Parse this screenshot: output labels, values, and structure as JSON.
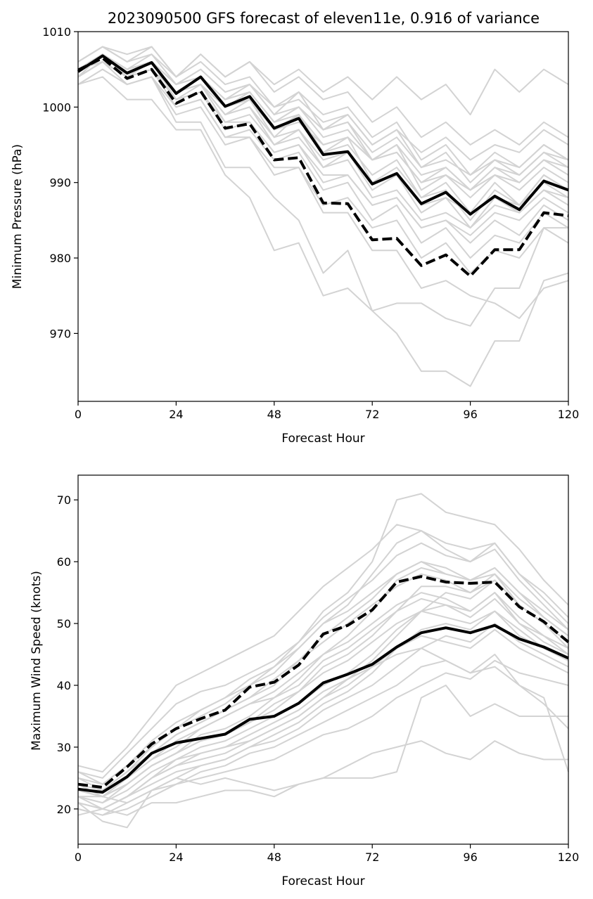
{
  "figure": {
    "title": "2023090500 GFS forecast of eleven11e, 0.916 of variance"
  },
  "colors": {
    "ensemble_member": "#d3d3d3",
    "solid_series": "#000000",
    "dashed_series": "#000000",
    "background": "#ffffff"
  },
  "chart_data": [
    {
      "type": "line",
      "title": "2023090500 GFS forecast of eleven11e, 0.916 of variance",
      "xlabel": "Forecast Hour",
      "ylabel": "Minimum Pressure (hPa)",
      "xlim": [
        0,
        120
      ],
      "ylim": [
        961,
        1010
      ],
      "xticks": [
        0,
        24,
        48,
        72,
        96,
        120
      ],
      "yticks": [
        970,
        980,
        990,
        1000,
        1010
      ],
      "grid": false,
      "x": [
        0,
        6,
        12,
        18,
        24,
        30,
        36,
        42,
        48,
        54,
        60,
        66,
        72,
        78,
        84,
        90,
        96,
        102,
        108,
        114,
        120
      ],
      "ensemble_members": [
        [
          1005,
          1007,
          1005,
          1006,
          1003,
          1005,
          1002,
          1003,
          999,
          1002,
          997,
          998,
          993,
          995,
          991,
          992,
          989,
          992,
          990,
          993,
          991
        ],
        [
          1004,
          1006,
          1004,
          1005,
          1002,
          1003,
          999,
          1001,
          996,
          999,
          994,
          996,
          990,
          992,
          988,
          990,
          986,
          990,
          987,
          991,
          989
        ],
        [
          1006,
          1008,
          1006,
          1007,
          1004,
          1006,
          1003,
          1004,
          1000,
          1002,
          999,
          1000,
          996,
          998,
          993,
          995,
          991,
          994,
          992,
          995,
          993
        ],
        [
          1005,
          1007,
          1005,
          1006,
          1003,
          1004,
          1001,
          1002,
          998,
          1000,
          996,
          997,
          993,
          995,
          989,
          991,
          988,
          991,
          989,
          992,
          990
        ],
        [
          1004,
          1007,
          1004,
          1006,
          1001,
          1003,
          998,
          999,
          995,
          997,
          992,
          994,
          989,
          991,
          986,
          988,
          984,
          988,
          986,
          989,
          987
        ],
        [
          1003,
          1005,
          1003,
          1004,
          1000,
          1001,
          996,
          997,
          993,
          994,
          989,
          990,
          985,
          987,
          982,
          984,
          980,
          983,
          982,
          986,
          984
        ],
        [
          1005,
          1006,
          1004,
          1006,
          1002,
          1004,
          1000,
          1001,
          997,
          999,
          994,
          995,
          991,
          993,
          988,
          989,
          985,
          989,
          987,
          991,
          989
        ],
        [
          1006,
          1008,
          1007,
          1008,
          1004,
          1007,
          1004,
          1006,
          1002,
          1004,
          1001,
          1002,
          998,
          1000,
          996,
          998,
          995,
          997,
          995,
          998,
          996
        ],
        [
          1004,
          1006,
          1004,
          1005,
          1001,
          1002,
          997,
          998,
          994,
          995,
          990,
          991,
          987,
          988,
          984,
          985,
          982,
          985,
          983,
          987,
          985
        ],
        [
          1003,
          1005,
          1003,
          1004,
          999,
          1000,
          995,
          996,
          991,
          992,
          987,
          988,
          984,
          985,
          980,
          982,
          978,
          981,
          980,
          984,
          982
        ],
        [
          1005,
          1007,
          1005,
          1007,
          1003,
          1005,
          1002,
          1003,
          1000,
          1001,
          998,
          999,
          995,
          997,
          992,
          994,
          990,
          993,
          991,
          994,
          992
        ],
        [
          1004,
          1006,
          1004,
          1005,
          1002,
          1003,
          1000,
          1001,
          997,
          998,
          995,
          996,
          993,
          994,
          990,
          992,
          989,
          991,
          990,
          993,
          992
        ],
        [
          1003,
          1004,
          1001,
          1001,
          997,
          997,
          991,
          988,
          981,
          982,
          975,
          976,
          973,
          974,
          974,
          972,
          971,
          976,
          976,
          984,
          984
        ],
        [
          1004,
          1006,
          1003,
          1004,
          998,
          998,
          992,
          992,
          988,
          985,
          978,
          981,
          973,
          970,
          965,
          965,
          963,
          969,
          969,
          977,
          978
        ],
        [
          1004,
          1006,
          1004,
          1005,
          1000,
          1001,
          996,
          996,
          992,
          992,
          986,
          986,
          981,
          981,
          976,
          977,
          975,
          974,
          972,
          976,
          977
        ],
        [
          1005,
          1007,
          1005,
          1006,
          1003,
          1004,
          1001,
          1002,
          998,
          1000,
          997,
          999,
          995,
          997,
          994,
          996,
          993,
          995,
          994,
          997,
          995
        ],
        [
          1006,
          1008,
          1006,
          1008,
          1004,
          1007,
          1004,
          1006,
          1003,
          1005,
          1002,
          1004,
          1001,
          1004,
          1001,
          1003,
          999,
          1005,
          1002,
          1005,
          1003
        ],
        [
          1004,
          1007,
          1005,
          1006,
          1002,
          1004,
          1000,
          1002,
          998,
          999,
          995,
          996,
          993,
          994,
          990,
          991,
          989,
          992,
          991,
          994,
          993
        ],
        [
          1005,
          1007,
          1005,
          1006,
          1002,
          1003,
          999,
          1000,
          996,
          997,
          993,
          994,
          990,
          991,
          987,
          988,
          986,
          988,
          987,
          990,
          988
        ],
        [
          1004,
          1006,
          1004,
          1005,
          1001,
          1002,
          998,
          998,
          994,
          995,
          991,
          991,
          987,
          988,
          984,
          985,
          983,
          986,
          985,
          988,
          986
        ],
        [
          1005,
          1007,
          1005,
          1006,
          1003,
          1004,
          1001,
          1003,
          999,
          1000,
          997,
          998,
          994,
          996,
          992,
          993,
          991,
          993,
          992,
          995,
          993
        ],
        [
          1004,
          1006,
          1004,
          1005,
          1002,
          1003,
          999,
          1000,
          995,
          996,
          992,
          993,
          988,
          989,
          985,
          986,
          984,
          987,
          986,
          989,
          988
        ]
      ],
      "series": [
        {
          "style": "solid",
          "values": [
            1004.7,
            1006.8,
            1004.5,
            1005.9,
            1001.8,
            1004.0,
            1000.1,
            1001.4,
            997.2,
            998.5,
            993.7,
            994.1,
            989.8,
            991.2,
            987.2,
            988.7,
            985.8,
            988.2,
            986.4,
            990.2,
            989.0
          ]
        },
        {
          "style": "dashed",
          "values": [
            1004.9,
            1006.5,
            1003.8,
            1005.0,
            1000.5,
            1002.1,
            997.2,
            997.8,
            993.0,
            993.3,
            987.3,
            987.2,
            982.4,
            982.6,
            979.0,
            980.4,
            977.6,
            981.1,
            981.1,
            986.0,
            985.6
          ]
        }
      ]
    },
    {
      "type": "line",
      "title": "",
      "xlabel": "Forecast Hour",
      "ylabel": "Maximum Wind Speed (knots)",
      "xlim": [
        0,
        120
      ],
      "ylim": [
        14.3,
        74
      ],
      "xticks": [
        0,
        24,
        48,
        72,
        96,
        120
      ],
      "yticks": [
        20,
        30,
        40,
        50,
        60,
        70
      ],
      "grid": false,
      "x": [
        0,
        6,
        12,
        18,
        24,
        30,
        36,
        42,
        48,
        54,
        60,
        66,
        72,
        78,
        84,
        90,
        96,
        102,
        108,
        114,
        120
      ],
      "ensemble_members": [
        [
          23,
          22,
          25,
          28,
          31,
          33,
          35,
          37,
          38,
          41,
          45,
          48,
          52,
          57,
          59,
          58,
          57,
          58,
          54,
          51,
          48
        ],
        [
          24,
          23,
          26,
          30,
          33,
          35,
          37,
          40,
          42,
          46,
          50,
          53,
          58,
          63,
          65,
          62,
          60,
          63,
          58,
          54,
          50
        ],
        [
          22,
          21,
          24,
          27,
          29,
          31,
          32,
          34,
          36,
          39,
          43,
          45,
          48,
          52,
          56,
          56,
          55,
          58,
          53,
          50,
          47
        ],
        [
          26,
          25,
          29,
          33,
          37,
          39,
          40,
          42,
          44,
          47,
          52,
          55,
          60,
          70,
          71,
          68,
          67,
          66,
          62,
          57,
          53
        ],
        [
          21,
          20,
          22,
          25,
          28,
          30,
          31,
          33,
          35,
          37,
          40,
          42,
          45,
          49,
          52,
          53,
          52,
          55,
          50,
          48,
          45
        ],
        [
          20,
          19,
          21,
          23,
          25,
          27,
          28,
          30,
          32,
          34,
          37,
          39,
          42,
          46,
          49,
          50,
          49,
          52,
          48,
          46,
          44
        ],
        [
          25,
          24,
          27,
          31,
          34,
          36,
          38,
          41,
          43,
          47,
          51,
          54,
          57,
          61,
          63,
          61,
          60,
          62,
          57,
          53,
          49
        ],
        [
          23,
          22,
          25,
          29,
          32,
          34,
          36,
          38,
          40,
          44,
          48,
          51,
          54,
          58,
          60,
          58,
          57,
          59,
          55,
          51,
          48
        ],
        [
          22,
          21,
          23,
          26,
          28,
          29,
          30,
          31,
          33,
          35,
          38,
          41,
          44,
          48,
          52,
          55,
          54,
          57,
          53,
          50,
          46
        ],
        [
          27,
          26,
          30,
          35,
          40,
          42,
          44,
          46,
          48,
          52,
          56,
          59,
          62,
          66,
          65,
          63,
          62,
          63,
          58,
          55,
          51
        ],
        [
          21,
          20,
          22,
          24,
          26,
          27,
          28,
          30,
          31,
          33,
          36,
          38,
          40,
          43,
          46,
          48,
          47,
          50,
          47,
          45,
          43
        ],
        [
          20,
          19,
          20,
          22,
          24,
          25,
          26,
          27,
          28,
          30,
          32,
          33,
          35,
          38,
          40,
          42,
          41,
          44,
          42,
          41,
          40
        ],
        [
          21,
          18,
          17,
          23,
          25,
          24,
          25,
          24,
          23,
          24,
          25,
          25,
          25,
          26,
          38,
          40,
          35,
          37,
          35,
          35,
          35
        ],
        [
          22,
          20,
          19,
          21,
          21,
          22,
          23,
          23,
          22,
          24,
          25,
          27,
          29,
          30,
          31,
          29,
          28,
          31,
          29,
          28,
          28
        ],
        [
          19,
          20,
          22,
          25,
          27,
          28,
          29,
          31,
          33,
          35,
          38,
          40,
          43,
          45,
          46,
          44,
          42,
          45,
          40,
          37,
          33
        ],
        [
          24,
          22,
          21,
          23,
          24,
          26,
          27,
          29,
          30,
          32,
          34,
          36,
          38,
          40,
          43,
          44,
          42,
          43,
          40,
          38,
          26
        ],
        [
          25,
          23,
          25,
          28,
          30,
          33,
          35,
          37,
          39,
          42,
          45,
          47,
          50,
          53,
          55,
          54,
          52,
          55,
          51,
          48,
          46
        ],
        [
          23,
          22,
          24,
          27,
          29,
          32,
          33,
          35,
          38,
          40,
          44,
          46,
          49,
          52,
          54,
          53,
          51,
          54,
          50,
          47,
          45
        ],
        [
          22,
          22,
          24,
          27,
          29,
          31,
          32,
          34,
          37,
          39,
          42,
          44,
          47,
          50,
          52,
          51,
          50,
          52,
          49,
          46,
          44
        ],
        [
          24,
          23,
          26,
          29,
          32,
          34,
          36,
          38,
          41,
          44,
          47,
          50,
          53,
          56,
          58,
          57,
          55,
          57,
          53,
          50,
          47
        ],
        [
          26,
          24,
          27,
          30,
          33,
          36,
          38,
          40,
          43,
          46,
          50,
          52,
          55,
          58,
          60,
          59,
          57,
          59,
          55,
          52,
          49
        ],
        [
          21,
          20,
          22,
          25,
          27,
          29,
          30,
          32,
          34,
          36,
          39,
          41,
          43,
          46,
          48,
          47,
          46,
          49,
          46,
          44,
          42
        ]
      ],
      "series": [
        {
          "style": "solid",
          "values": [
            23.2,
            22.7,
            25.2,
            29.0,
            30.7,
            31.4,
            32.1,
            34.5,
            35.0,
            37.1,
            40.4,
            41.8,
            43.4,
            46.2,
            48.5,
            49.3,
            48.5,
            49.7,
            47.5,
            46.2,
            44.4
          ]
        },
        {
          "style": "dashed",
          "values": [
            24.0,
            23.5,
            26.8,
            30.5,
            33.0,
            34.6,
            36.0,
            39.7,
            40.5,
            43.3,
            48.3,
            49.7,
            52.2,
            56.7,
            57.6,
            56.7,
            56.5,
            56.7,
            52.7,
            50.3,
            47.0
          ]
        }
      ]
    }
  ]
}
